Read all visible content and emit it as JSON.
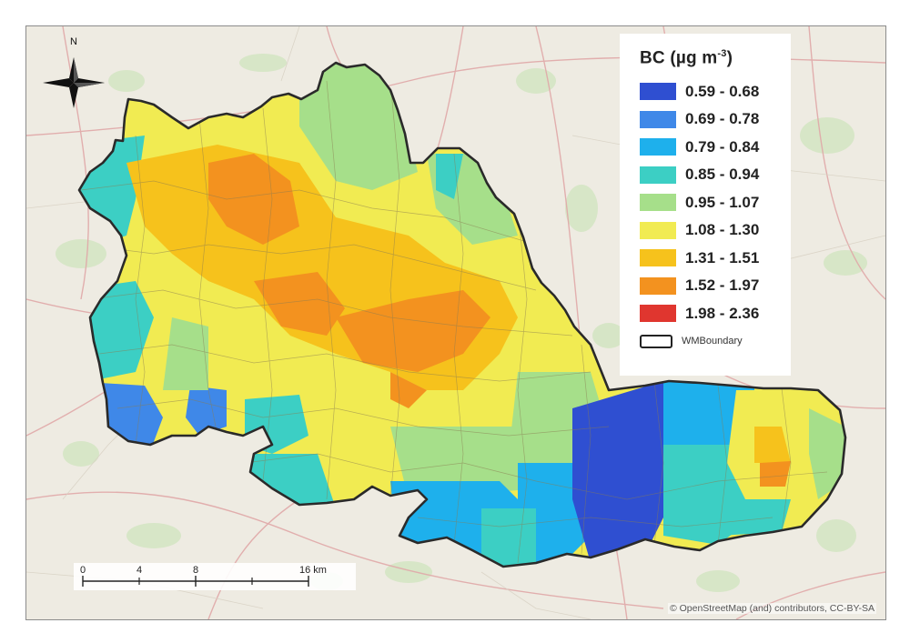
{
  "map": {
    "north_label": "N",
    "attribution": "© OpenStreetMap (and) contributors, CC-BY-SA"
  },
  "legend": {
    "title_main": "BC (µg m",
    "title_exp": "-3",
    "title_end": ")",
    "classes": [
      {
        "label": "0.59 - 0.68",
        "color": "#2f4fd1"
      },
      {
        "label": "0.69 - 0.78",
        "color": "#3f88e8"
      },
      {
        "label": "0.79 - 0.84",
        "color": "#1eb0ec"
      },
      {
        "label": "0.85 - 0.94",
        "color": "#3ccfc4"
      },
      {
        "label": "0.95 - 1.07",
        "color": "#a6df8a"
      },
      {
        "label": "1.08 - 1.30",
        "color": "#f1eb52"
      },
      {
        "label": "1.31 - 1.51",
        "color": "#f6c21c"
      },
      {
        "label": "1.52 - 1.97",
        "color": "#f3921f"
      },
      {
        "label": "1.98 - 2.36",
        "color": "#e0362f"
      }
    ],
    "boundary_label": "WMBoundary"
  },
  "scale_bar": {
    "ticks": [
      "0",
      "4",
      "8",
      "16 km"
    ]
  }
}
